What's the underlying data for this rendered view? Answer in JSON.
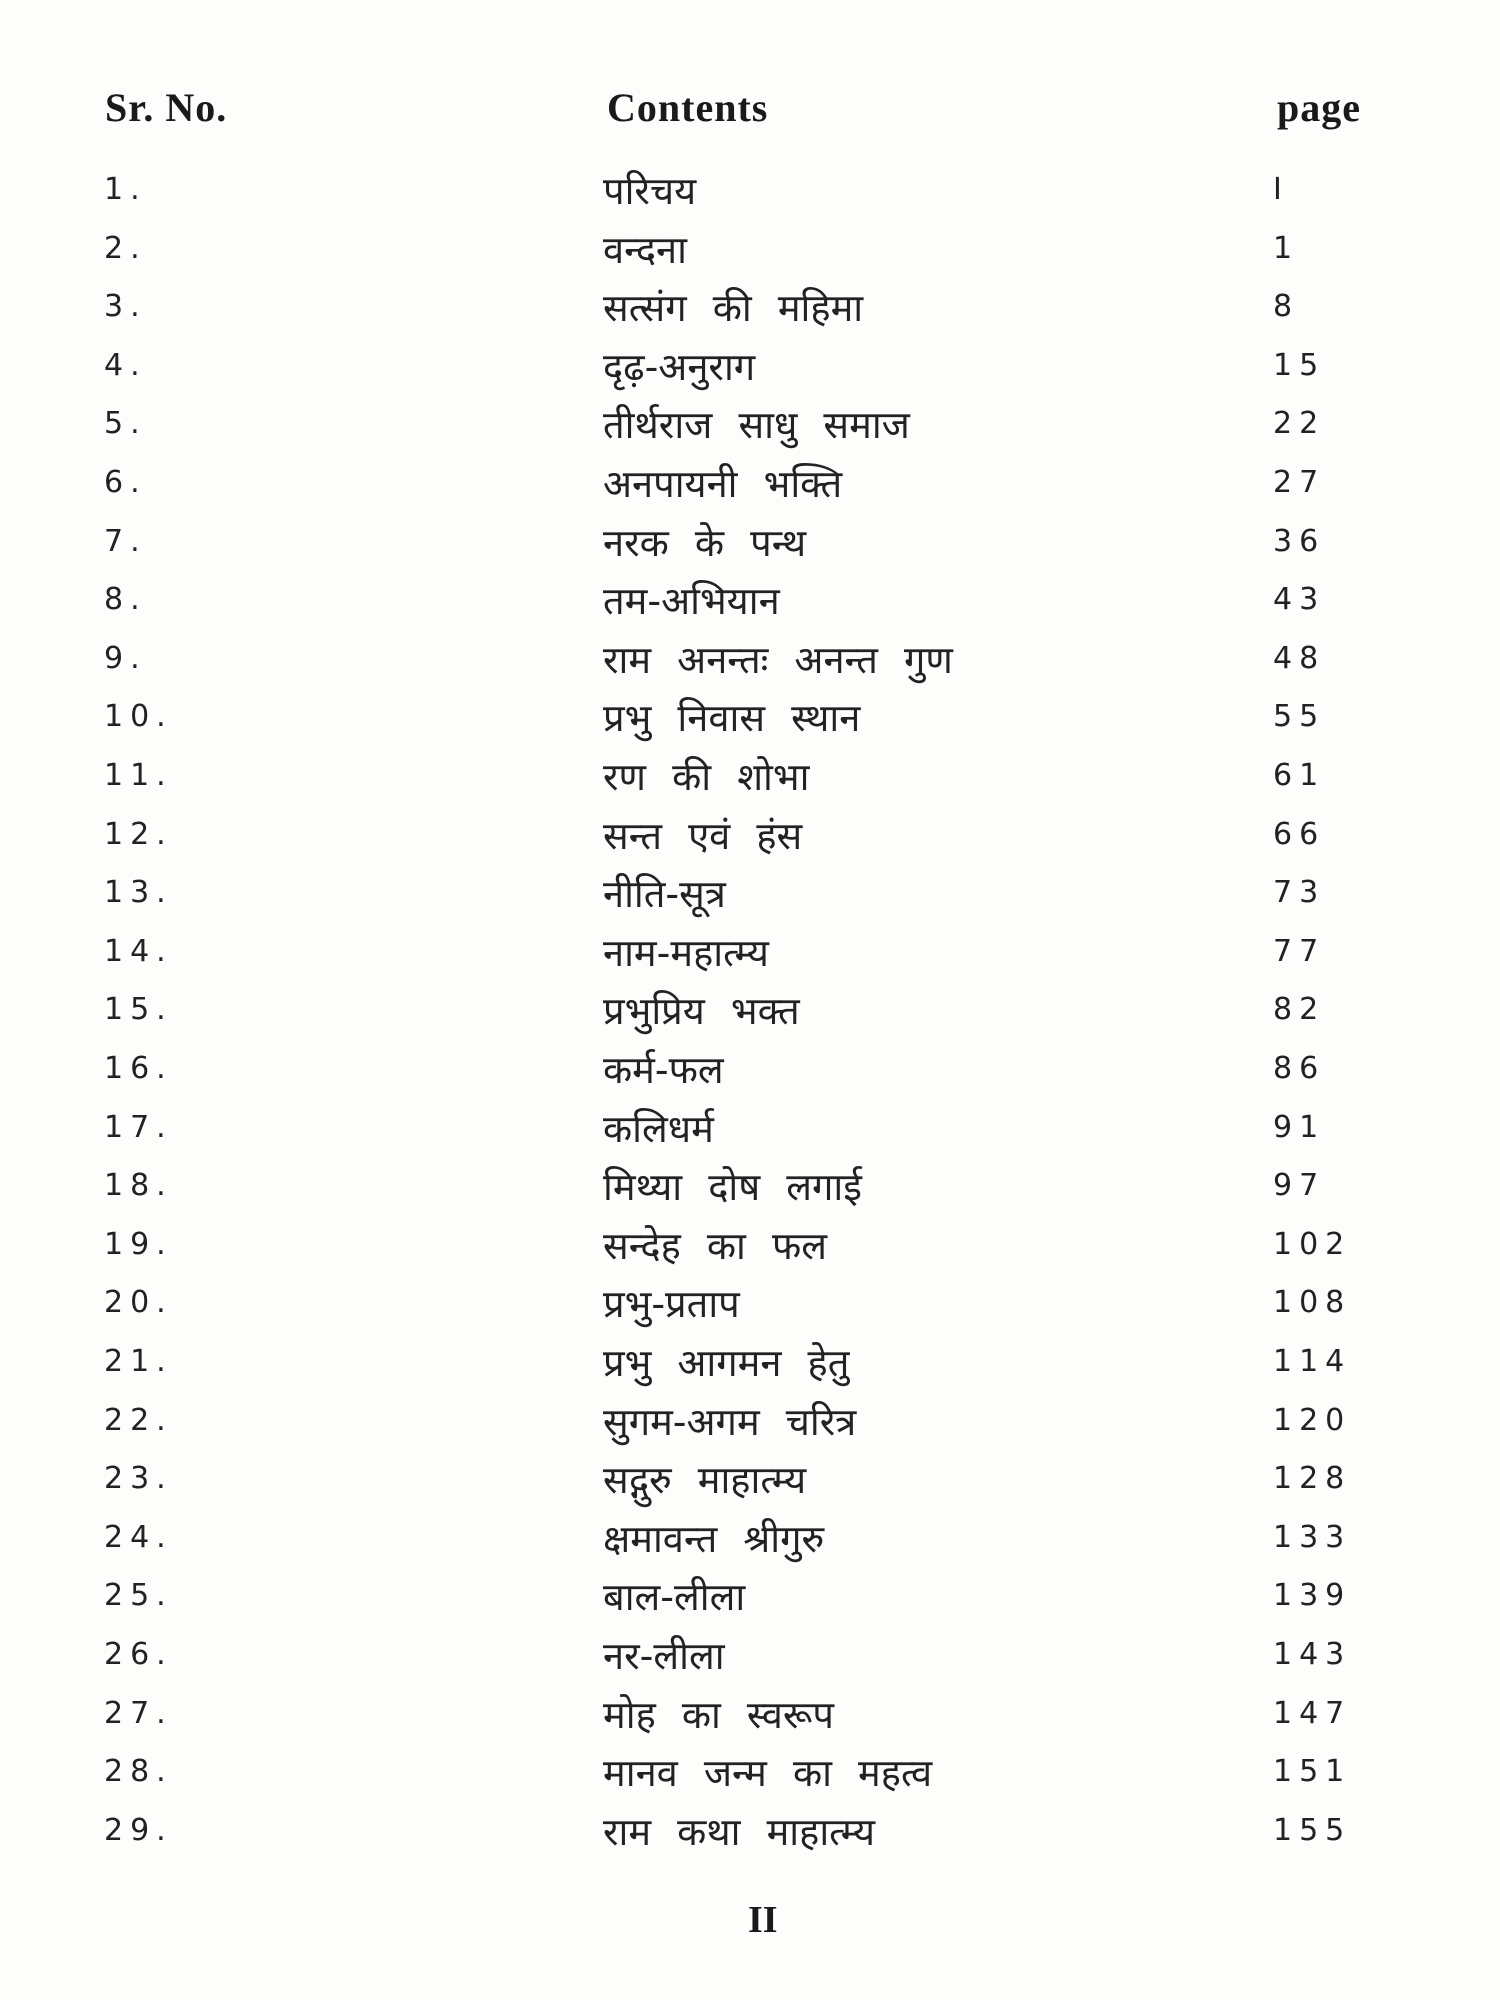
{
  "header": {
    "sr_no": "Sr. No.",
    "contents": "Contents",
    "page": "page"
  },
  "rows": [
    {
      "sr": "1.",
      "title": "परिचय",
      "page": "I"
    },
    {
      "sr": "2.",
      "title": "वन्दना",
      "page": "1"
    },
    {
      "sr": "3.",
      "title": "सत्संग की महिमा",
      "page": "8"
    },
    {
      "sr": "4.",
      "title": "दृढ़-अनुराग",
      "page": "15"
    },
    {
      "sr": "5.",
      "title": "तीर्थराज साधु समाज",
      "page": "22"
    },
    {
      "sr": "6.",
      "title": "अनपायनी भक्ति",
      "page": "27"
    },
    {
      "sr": "7.",
      "title": "नरक के पन्थ",
      "page": "36"
    },
    {
      "sr": "8.",
      "title": "तम-अभियान",
      "page": "43"
    },
    {
      "sr": "9.",
      "title": "राम अनन्तः अनन्त गुण",
      "page": "48"
    },
    {
      "sr": "10.",
      "title": "प्रभु निवास स्थान",
      "page": "55"
    },
    {
      "sr": "11.",
      "title": "रण की शोभा",
      "page": "61"
    },
    {
      "sr": "12.",
      "title": "सन्त एवं हंस",
      "page": "66"
    },
    {
      "sr": "13.",
      "title": "नीति-सूत्र",
      "page": "73"
    },
    {
      "sr": "14.",
      "title": "नाम-महात्म्य",
      "page": "77"
    },
    {
      "sr": "15.",
      "title": "प्रभुप्रिय भक्त",
      "page": "82"
    },
    {
      "sr": "16.",
      "title": "कर्म-फल",
      "page": "86"
    },
    {
      "sr": "17.",
      "title": "कलिधर्म",
      "page": "91"
    },
    {
      "sr": "18.",
      "title": "मिथ्या दोष लगाई",
      "page": "97"
    },
    {
      "sr": "19.",
      "title": "सन्देह का फल",
      "page": "102"
    },
    {
      "sr": "20.",
      "title": "प्रभु-प्रताप",
      "page": "108"
    },
    {
      "sr": "21.",
      "title": "प्रभु आगमन हेतु",
      "page": "114"
    },
    {
      "sr": "22.",
      "title": "सुगम-अगम चरित्र",
      "page": "120"
    },
    {
      "sr": "23.",
      "title": "सद्गुरु माहात्म्य",
      "page": "128"
    },
    {
      "sr": "24.",
      "title": "क्षमावन्त श्रीगुरु",
      "page": "133"
    },
    {
      "sr": "25.",
      "title": "बाल-लीला",
      "page": "139"
    },
    {
      "sr": "26.",
      "title": "नर-लीला",
      "page": "143"
    },
    {
      "sr": "27.",
      "title": "मोह का स्वरूप",
      "page": "147"
    },
    {
      "sr": "28.",
      "title": "मानव जन्म का महत्व",
      "page": "151"
    },
    {
      "sr": "29.",
      "title": "राम कथा माहात्म्य",
      "page": "155"
    }
  ],
  "footer": {
    "page_number": "II"
  }
}
